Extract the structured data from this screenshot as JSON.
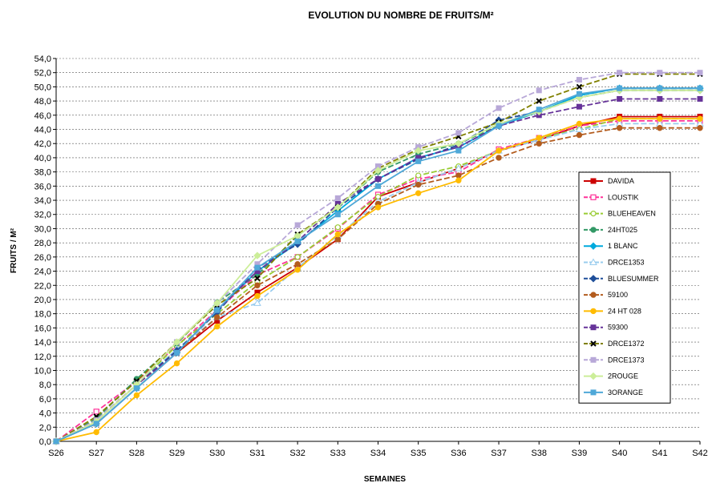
{
  "chart_data": {
    "type": "line",
    "title": "EVOLUTION DU NOMBRE DE FRUITS/M²",
    "xlabel": "SEMAINES",
    "ylabel": "FRUITS / M²",
    "ylim": [
      0,
      54
    ],
    "y_step": 2,
    "y_tick_format": "0,0",
    "grid": "horizontal dashed",
    "legend_position": "right",
    "categories": [
      "S26",
      "S27",
      "S28",
      "S29",
      "S30",
      "S31",
      "S32",
      "S33",
      "S34",
      "S35",
      "S36",
      "S37",
      "S38",
      "S39",
      "S40",
      "S41",
      "S42"
    ],
    "series": [
      {
        "name": "DAVIDA",
        "color": "#cc0000",
        "dash": "solid",
        "marker": "square",
        "values": [
          0,
          2.5,
          7.5,
          12.5,
          17,
          21,
          24.5,
          28.5,
          34.5,
          36.5,
          38.5,
          41,
          42.5,
          44.5,
          45.8,
          45.8,
          45.8
        ]
      },
      {
        "name": "LOUSTIK",
        "color": "#ff3399",
        "dash": "dashed",
        "marker": "square-open",
        "values": [
          0,
          4.2,
          8.5,
          13.5,
          18.5,
          23.5,
          26,
          30,
          34.8,
          37,
          38,
          41.2,
          42.8,
          44.5,
          45.2,
          45.2,
          45.2
        ]
      },
      {
        "name": "BLUEHEAVEN",
        "color": "#99cc33",
        "dash": "dashed",
        "marker": "circle-open",
        "values": [
          0,
          2.8,
          8,
          13.5,
          18,
          22.5,
          26,
          30.2,
          34.5,
          37.5,
          38.8,
          41,
          42.8,
          44,
          45.5,
          45.5,
          45.5
        ]
      },
      {
        "name": "24HT025",
        "color": "#339966",
        "dash": "dashed",
        "marker": "circle",
        "values": [
          0,
          3.2,
          8.8,
          13.8,
          19.6,
          23.5,
          29,
          33,
          38,
          40.5,
          42,
          44.5,
          46.5,
          48.8,
          49.8,
          49.8,
          49.8
        ]
      },
      {
        "name": "1 BLANC",
        "color": "#00aadd",
        "dash": "solid",
        "marker": "diamond",
        "values": [
          0,
          2.5,
          7.5,
          12.5,
          18.5,
          24,
          28,
          32.5,
          37,
          40,
          41.5,
          44.5,
          46.5,
          48.8,
          49.8,
          49.8,
          49.8
        ]
      },
      {
        "name": "DRCE1353",
        "color": "#99ccee",
        "dash": "dashed",
        "marker": "triangle-open",
        "values": [
          0,
          2.8,
          8,
          13,
          17.5,
          19.5,
          24.5,
          29,
          33.8,
          36.5,
          38.5,
          41,
          42.5,
          44,
          44.8,
          44.8,
          44.8
        ]
      },
      {
        "name": "BLUESUMMER",
        "color": "#1f4e9a",
        "dash": "dashed",
        "marker": "diamond",
        "values": [
          0,
          3,
          8,
          12.8,
          18.2,
          24.5,
          27.8,
          33,
          37,
          39.8,
          41.8,
          45.3,
          46.5,
          48.5,
          49.5,
          49.5,
          49.5
        ]
      },
      {
        "name": "59100",
        "color": "#b35c1e",
        "dash": "dashed",
        "marker": "circle",
        "values": [
          0,
          3,
          8,
          12.5,
          17.5,
          22,
          25,
          28.5,
          33.5,
          36.2,
          37.5,
          40,
          42,
          43.2,
          44.2,
          44.2,
          44.2
        ]
      },
      {
        "name": "24 HT 028",
        "color": "#ffbb00",
        "dash": "solid",
        "marker": "circle",
        "values": [
          0,
          1.3,
          6.5,
          11,
          16.2,
          20.5,
          24.2,
          29.2,
          33,
          35,
          36.8,
          41,
          42.8,
          44.8,
          45.5,
          45.5,
          45.5
        ]
      },
      {
        "name": "59300",
        "color": "#663399",
        "dash": "dashed",
        "marker": "square",
        "values": [
          0,
          2.8,
          8,
          12.5,
          18.5,
          24,
          28.2,
          33.5,
          37,
          40,
          41.5,
          44.5,
          46,
          47.2,
          48.3,
          48.3,
          48.3
        ]
      },
      {
        "name": "DRCE1372",
        "color": "#808000",
        "dash": "dashed",
        "marker": "x",
        "values": [
          0,
          3.5,
          8.5,
          14,
          19.2,
          23,
          29.2,
          33,
          38.5,
          41.2,
          43,
          45,
          48,
          50,
          51.8,
          51.8,
          51.8
        ]
      },
      {
        "name": "DRCE1373",
        "color": "#b8a8d8",
        "dash": "dashed",
        "marker": "square",
        "values": [
          0,
          3,
          8,
          14,
          19.5,
          25,
          30.5,
          34.3,
          38.8,
          41.5,
          43.5,
          47,
          49.5,
          51,
          52,
          52,
          52
        ]
      },
      {
        "name": "2ROUGE",
        "color": "#ccee99",
        "dash": "solid",
        "marker": "diamond",
        "values": [
          0,
          2.8,
          8,
          14,
          19.5,
          26.2,
          29,
          33,
          38.2,
          41,
          42,
          44.8,
          46.5,
          48.5,
          49.5,
          49.5,
          49.5
        ]
      },
      {
        "name": "3ORANGE",
        "color": "#4fa8d8",
        "dash": "solid",
        "marker": "square",
        "values": [
          0,
          2.5,
          7.5,
          12.5,
          18.5,
          24.5,
          28.2,
          32,
          36,
          39.5,
          41,
          44.5,
          46.8,
          49,
          49.8,
          49.8,
          49.8
        ]
      }
    ]
  }
}
